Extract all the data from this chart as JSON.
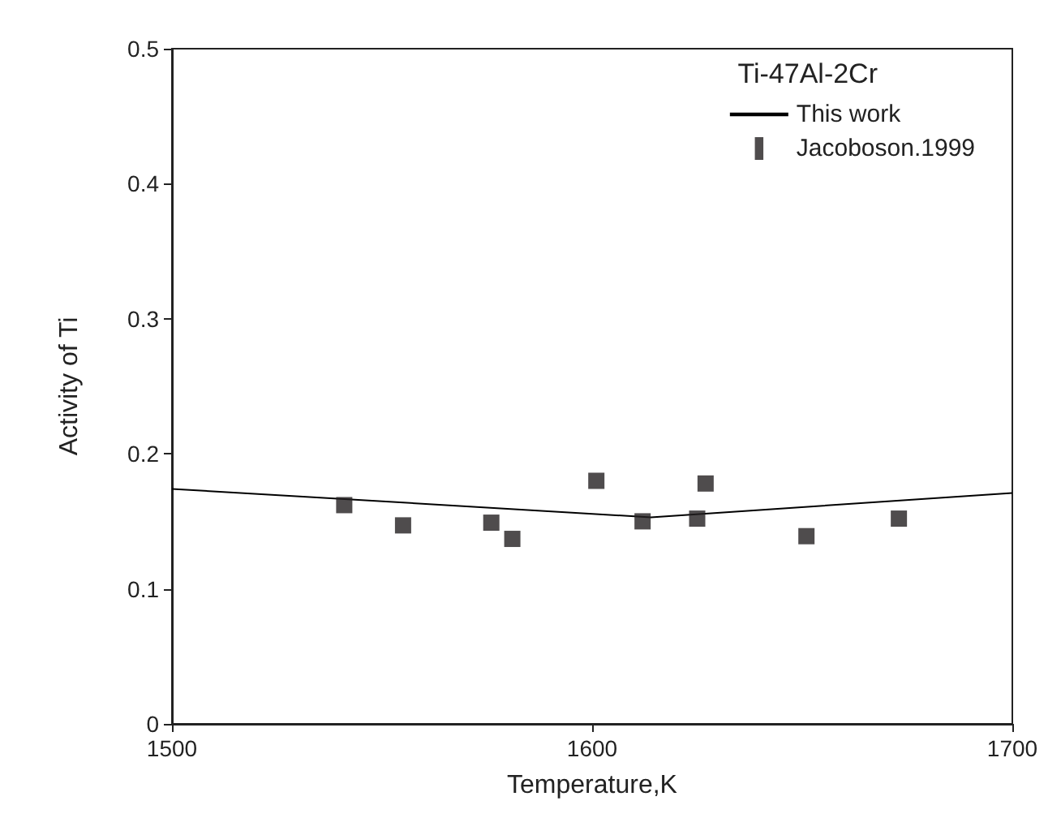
{
  "chart_data": {
    "type": "scatter",
    "xlabel": "Temperature,K",
    "ylabel": "Activity of Ti",
    "legend_title": "Ti-47Al-2Cr",
    "legend": "top right",
    "grid": false,
    "xlim": [
      1500,
      1700
    ],
    "xticks": [
      1500,
      1600,
      1700
    ],
    "ylim": [
      0,
      0.5
    ],
    "yticks": [
      0,
      0.1,
      0.2,
      0.3,
      0.4,
      0.5
    ],
    "series": [
      {
        "name": "This work",
        "type": "line",
        "color": "#000000",
        "marker": "none",
        "line_style": "solid",
        "x": [
          1500,
          1614,
          1700
        ],
        "values": [
          0.174,
          0.153,
          0.171
        ]
      },
      {
        "name": "Jacoboson.1999",
        "color": "#231f20",
        "marker": "square",
        "x": [
          1541,
          1555,
          1576,
          1581,
          1601,
          1612,
          1625,
          1627,
          1651,
          1673
        ],
        "values": [
          0.162,
          0.147,
          0.149,
          0.137,
          0.18,
          0.15,
          0.152,
          0.178,
          0.139,
          0.152
        ]
      }
    ]
  }
}
